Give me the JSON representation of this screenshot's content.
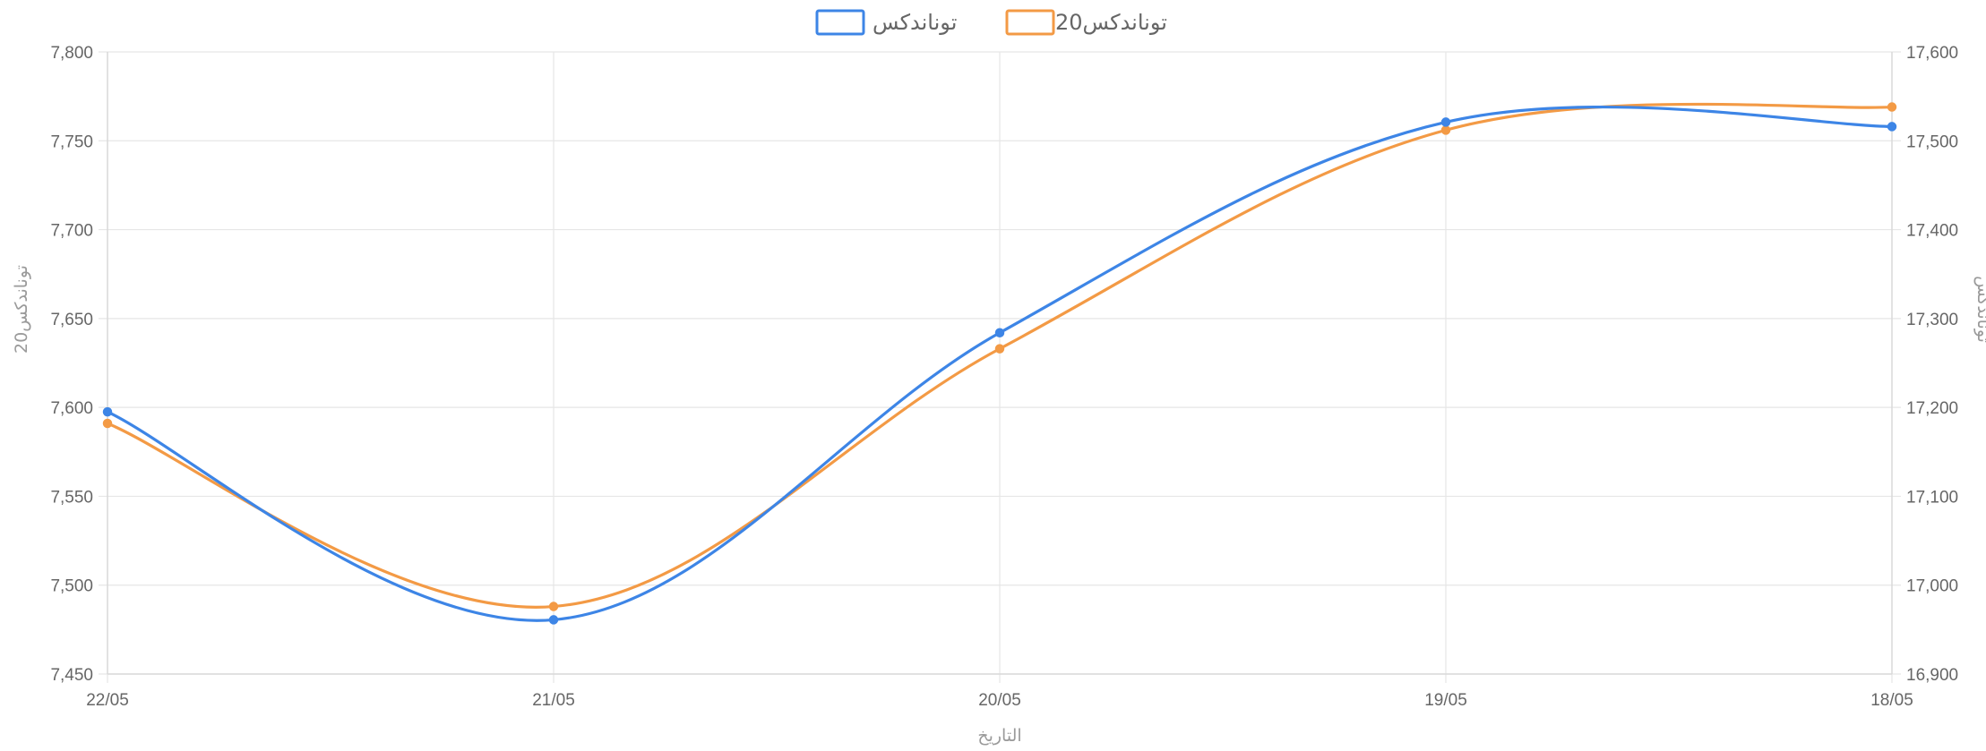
{
  "chart_data": {
    "type": "line",
    "categories": [
      "22/05",
      "21/05",
      "20/05",
      "19/05",
      "18/05"
    ],
    "xlabel": "التاريخ",
    "ylabel_left": "توناندكس20",
    "ylabel_right": "توناندكس",
    "ylim_left": [
      7450,
      7800
    ],
    "ylim_right": [
      16900,
      17600
    ],
    "yticks_left": [
      "7,450",
      "7,500",
      "7,550",
      "7,600",
      "7,650",
      "7,700",
      "7,750",
      "7,800"
    ],
    "yticks_right": [
      "16,900",
      "17,000",
      "17,100",
      "17,200",
      "17,300",
      "17,400",
      "17,500",
      "17,600"
    ],
    "grid": true,
    "legend_position": "top",
    "series": [
      {
        "name": "توناندكس",
        "axis": "right",
        "color": "#3d85e6",
        "values": [
          17195,
          16961,
          17284,
          17521,
          17516
        ]
      },
      {
        "name": "توناندكس20",
        "axis": "left",
        "color": "#f39a45",
        "values": [
          7591,
          7488,
          7633,
          7756,
          7769
        ]
      }
    ]
  }
}
